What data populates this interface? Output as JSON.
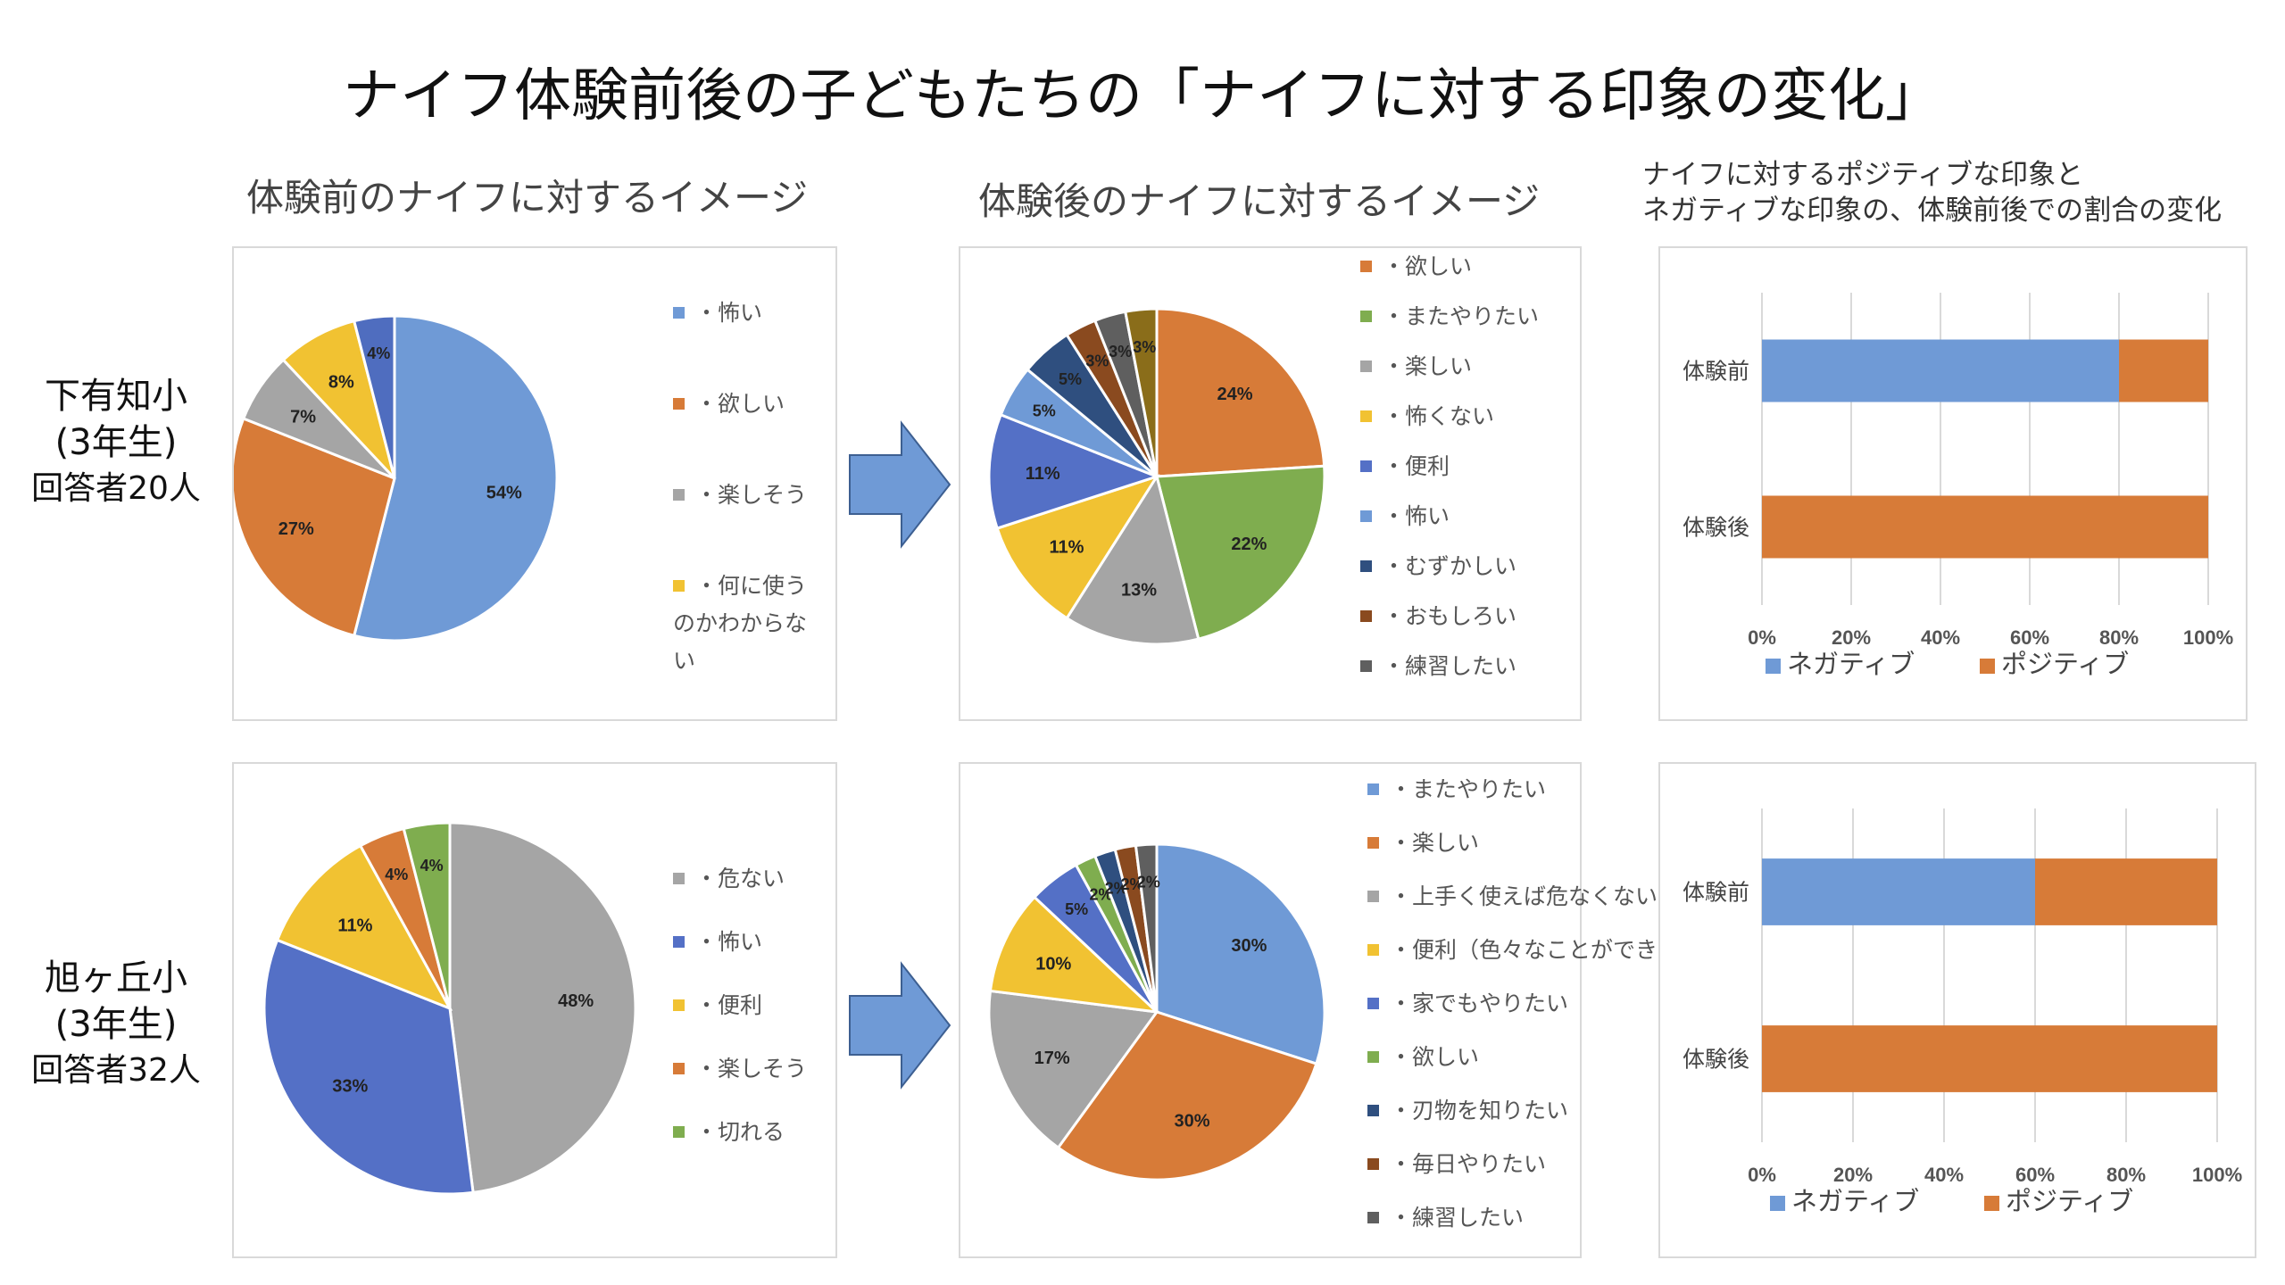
{
  "title": "ナイフ体験前後の子どもたちの「ナイフに対する印象の変化」",
  "columns": {
    "before": "体験前のナイフに対するイメージ",
    "after": "体験後のナイフに対するイメージ",
    "ratio_line1": "ナイフに対するポジティブな印象と",
    "ratio_line2": "ネガティブな印象の、体験前後での割合の変化"
  },
  "schools": [
    {
      "name": "下有知小",
      "grade": "(3年生)",
      "respondents": "回答者20人"
    },
    {
      "name": "旭ヶ丘小",
      "grade": "(3年生)",
      "respondents": "回答者32人"
    }
  ],
  "chart_data": [
    {
      "type": "pie",
      "id": "school1-before",
      "slices": [
        {
          "label": "・怖い",
          "value": 54,
          "color": "#6f9ad6"
        },
        {
          "label": "・欲しい",
          "value": 27,
          "color": "#d77b38"
        },
        {
          "label": "・楽しそう",
          "value": 7,
          "color": "#a5a5a5"
        },
        {
          "label": "・何に使うのかわからない",
          "value": 8,
          "color": "#f1c232"
        },
        {
          "label": "",
          "value": 4,
          "color": "#4f6dbf"
        }
      ],
      "data_labels": [
        "54%",
        "27%",
        "7%",
        "8%",
        "4%"
      ],
      "legend": [
        "・怖い",
        "・欲しい",
        "・楽しそう",
        "・何に使うのかわからない"
      ]
    },
    {
      "type": "pie",
      "id": "school1-after",
      "slices": [
        {
          "label": "・欲しい",
          "value": 24,
          "color": "#d77b38"
        },
        {
          "label": "・またやりたい",
          "value": 22,
          "color": "#7fad4f"
        },
        {
          "label": "・楽しい",
          "value": 13,
          "color": "#a5a5a5"
        },
        {
          "label": "・怖くない",
          "value": 11,
          "color": "#f1c232"
        },
        {
          "label": "・便利",
          "value": 11,
          "color": "#5470c6"
        },
        {
          "label": "・怖い",
          "value": 5,
          "color": "#6f9ad6"
        },
        {
          "label": "・むずかしい",
          "value": 5,
          "color": "#2f4f7f"
        },
        {
          "label": "・おもしろい",
          "value": 3,
          "color": "#8a4a1f"
        },
        {
          "label": "・練習したい",
          "value": 3,
          "color": "#5f5f5f"
        },
        {
          "label": "",
          "value": 3,
          "color": "#8a6d1a"
        }
      ],
      "data_labels": [
        "24%",
        "22%",
        "13%",
        "11%",
        "11%",
        "5%",
        "5%",
        "3%",
        "3%",
        "3%"
      ],
      "legend": [
        "・欲しい",
        "・またやりたい",
        "・楽しい",
        "・怖くない",
        "・便利",
        "・怖い",
        "・むずかしい",
        "・おもしろい",
        "・練習したい"
      ]
    },
    {
      "type": "bar",
      "orientation": "horizontal",
      "stacked": true,
      "id": "school1-ratio",
      "categories": [
        "体験前",
        "体験後"
      ],
      "series": [
        {
          "name": "ネガティブ",
          "values": [
            80,
            0
          ],
          "color": "#6f9ad6"
        },
        {
          "name": "ポジティブ",
          "values": [
            20,
            100
          ],
          "color": "#d77b38"
        }
      ],
      "x_ticks": [
        "0%",
        "20%",
        "40%",
        "60%",
        "80%",
        "100%"
      ],
      "xlim": [
        0,
        100
      ]
    },
    {
      "type": "pie",
      "id": "school2-before",
      "slices": [
        {
          "label": "・危ない",
          "value": 48,
          "color": "#a5a5a5"
        },
        {
          "label": "・怖い",
          "value": 33,
          "color": "#5470c6"
        },
        {
          "label": "・便利",
          "value": 11,
          "color": "#f1c232"
        },
        {
          "label": "・楽しそう",
          "value": 4,
          "color": "#d77b38"
        },
        {
          "label": "・切れる",
          "value": 4,
          "color": "#7fad4f"
        }
      ],
      "data_labels": [
        "48%",
        "33%",
        "11%",
        "4%",
        "4%"
      ],
      "legend": [
        "・危ない",
        "・怖い",
        "・便利",
        "・楽しそう",
        "・切れる"
      ]
    },
    {
      "type": "pie",
      "id": "school2-after",
      "slices": [
        {
          "label": "・またやりたい",
          "value": 30,
          "color": "#6f9ad6"
        },
        {
          "label": "・楽しい",
          "value": 30,
          "color": "#d77b38"
        },
        {
          "label": "・上手く使えば危なくない",
          "value": 17,
          "color": "#a5a5a5"
        },
        {
          "label": "・便利（色々なことができる）",
          "value": 10,
          "color": "#f1c232"
        },
        {
          "label": "・家でもやりたい",
          "value": 5,
          "color": "#5470c6"
        },
        {
          "label": "・欲しい",
          "value": 2,
          "color": "#7fad4f"
        },
        {
          "label": "・刃物を知りたい",
          "value": 2,
          "color": "#2f4f7f"
        },
        {
          "label": "・毎日やりたい",
          "value": 2,
          "color": "#8a4a1f"
        },
        {
          "label": "・練習したい",
          "value": 2,
          "color": "#5f5f5f"
        }
      ],
      "data_labels": [
        "30%",
        "30%",
        "17%",
        "10%",
        "5%",
        "2%",
        "2%",
        "2%",
        "2%"
      ],
      "legend": [
        "・またやりたい",
        "・楽しい",
        "・上手く使えば危なくない",
        "・便利（色々なことができる）",
        "・家でもやりたい",
        "・欲しい",
        "・刃物を知りたい",
        "・毎日やりたい",
        "・練習したい"
      ]
    },
    {
      "type": "bar",
      "orientation": "horizontal",
      "stacked": true,
      "id": "school2-ratio",
      "categories": [
        "体験前",
        "体験後"
      ],
      "series": [
        {
          "name": "ネガティブ",
          "values": [
            60,
            0
          ],
          "color": "#6f9ad6"
        },
        {
          "name": "ポジティブ",
          "values": [
            40,
            100
          ],
          "color": "#d77b38"
        }
      ],
      "x_ticks": [
        "0%",
        "20%",
        "40%",
        "60%",
        "80%",
        "100%"
      ],
      "xlim": [
        0,
        100
      ]
    }
  ]
}
